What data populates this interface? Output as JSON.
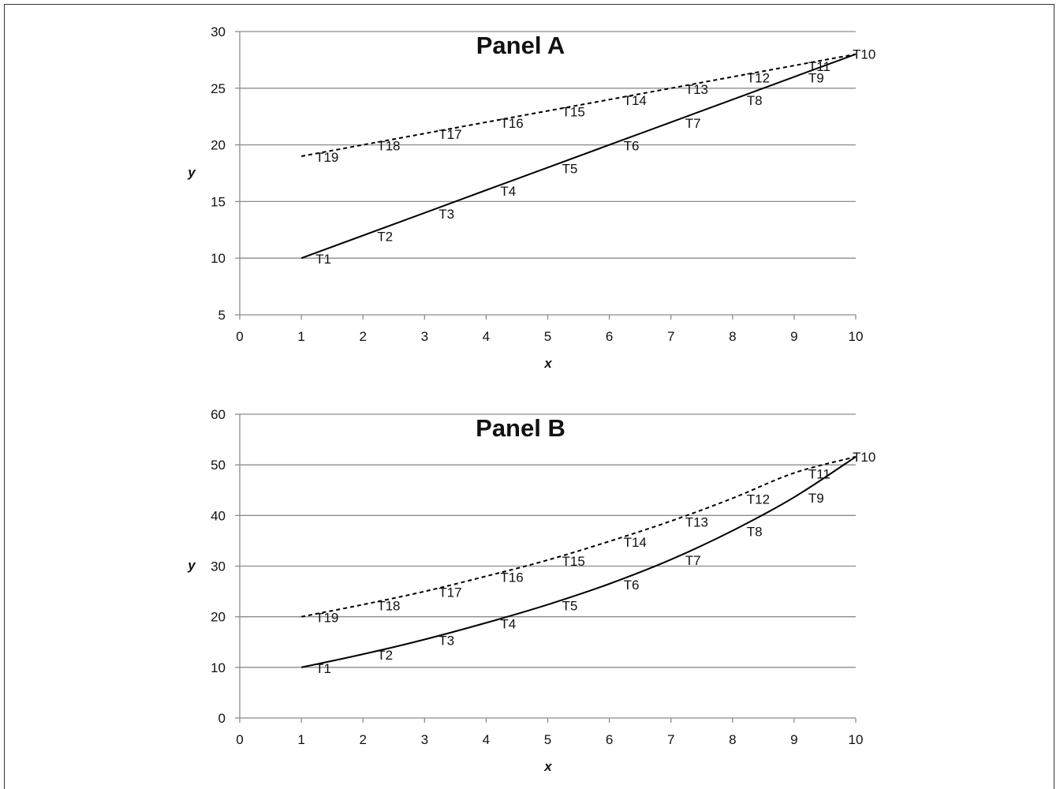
{
  "chart_data": [
    {
      "type": "line",
      "title": "Panel A",
      "xlabel": "x",
      "ylabel": "y",
      "xlim": [
        0,
        10
      ],
      "ylim": [
        5,
        30
      ],
      "xticks": [
        "0",
        "1",
        "2",
        "3",
        "4",
        "5",
        "6",
        "7",
        "8",
        "9",
        "10"
      ],
      "yticks": [
        "5",
        "10",
        "15",
        "20",
        "25",
        "30"
      ],
      "grid": true,
      "series": [
        {
          "style": "solid",
          "points": [
            {
              "label": "T1",
              "x": 1,
              "y": 10
            },
            {
              "label": "T2",
              "x": 2,
              "y": 12
            },
            {
              "label": "T3",
              "x": 3,
              "y": 14
            },
            {
              "label": "T4",
              "x": 4,
              "y": 16
            },
            {
              "label": "T5",
              "x": 5,
              "y": 18
            },
            {
              "label": "T6",
              "x": 6,
              "y": 20
            },
            {
              "label": "T7",
              "x": 7,
              "y": 22
            },
            {
              "label": "T8",
              "x": 8,
              "y": 24
            },
            {
              "label": "T9",
              "x": 9,
              "y": 26
            },
            {
              "label": "T10",
              "x": 10,
              "y": 28
            }
          ]
        },
        {
          "style": "dashed",
          "points": [
            {
              "label": "T19",
              "x": 1,
              "y": 19
            },
            {
              "label": "T18",
              "x": 2,
              "y": 20
            },
            {
              "label": "T17",
              "x": 3,
              "y": 21
            },
            {
              "label": "T16",
              "x": 4,
              "y": 22
            },
            {
              "label": "T15",
              "x": 5,
              "y": 23
            },
            {
              "label": "T14",
              "x": 6,
              "y": 24
            },
            {
              "label": "T13",
              "x": 7,
              "y": 25
            },
            {
              "label": "T12",
              "x": 8,
              "y": 26
            },
            {
              "label": "T11",
              "x": 9,
              "y": 27
            },
            {
              "label": "",
              "x": 10,
              "y": 28
            }
          ]
        }
      ]
    },
    {
      "type": "line",
      "title": "Panel B",
      "xlabel": "x",
      "ylabel": "y",
      "xlim": [
        0,
        10
      ],
      "ylim": [
        0,
        60
      ],
      "xticks": [
        "0",
        "1",
        "2",
        "3",
        "4",
        "5",
        "6",
        "7",
        "8",
        "9",
        "10"
      ],
      "yticks": [
        "0",
        "10",
        "20",
        "30",
        "40",
        "50",
        "60"
      ],
      "grid": true,
      "series": [
        {
          "style": "solid",
          "points": [
            {
              "label": "T1",
              "x": 1,
              "y": 10
            },
            {
              "label": "T2",
              "x": 2,
              "y": 12.6
            },
            {
              "label": "T3",
              "x": 3,
              "y": 15.5
            },
            {
              "label": "T4",
              "x": 4,
              "y": 18.8
            },
            {
              "label": "T5",
              "x": 5,
              "y": 22.4
            },
            {
              "label": "T6",
              "x": 6,
              "y": 26.5
            },
            {
              "label": "T7",
              "x": 7,
              "y": 31.3
            },
            {
              "label": "T8",
              "x": 8,
              "y": 37
            },
            {
              "label": "T9",
              "x": 9,
              "y": 43.6
            },
            {
              "label": "T10",
              "x": 10,
              "y": 51.6
            }
          ]
        },
        {
          "style": "dashed",
          "points": [
            {
              "label": "T19",
              "x": 1,
              "y": 20
            },
            {
              "label": "T18",
              "x": 2,
              "y": 22.4
            },
            {
              "label": "T17",
              "x": 3,
              "y": 25
            },
            {
              "label": "T16",
              "x": 4,
              "y": 28
            },
            {
              "label": "T15",
              "x": 5,
              "y": 31.2
            },
            {
              "label": "T14",
              "x": 6,
              "y": 34.9
            },
            {
              "label": "T13",
              "x": 7,
              "y": 38.9
            },
            {
              "label": "T12",
              "x": 8,
              "y": 43.4
            },
            {
              "label": "T11",
              "x": 9,
              "y": 48.4
            },
            {
              "label": "",
              "x": 10,
              "y": 51.6
            }
          ]
        }
      ]
    }
  ]
}
